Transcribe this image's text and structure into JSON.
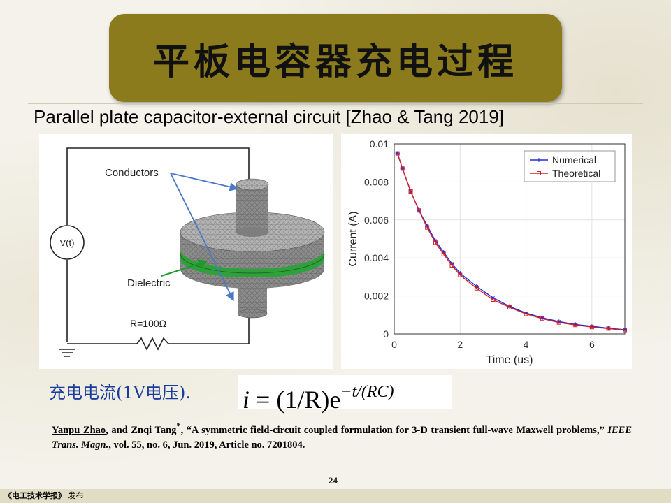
{
  "title": "平板电容器充电过程",
  "subtitle": "Parallel plate capacitor-external circuit [Zhao & Tang 2019]",
  "diagram": {
    "source_label": "V(t)",
    "conductors_label": "Conductors",
    "dielectric_label": "Dielectric",
    "resistor_label": "R=100Ω"
  },
  "chart_data": {
    "type": "line",
    "xlabel": "Time (us)",
    "ylabel": "Current (A)",
    "xlim": [
      0,
      7
    ],
    "ylim": [
      0,
      0.01
    ],
    "x_ticks": [
      "0",
      "2",
      "4",
      "6"
    ],
    "y_ticks": [
      "0",
      "0.002",
      "0.004",
      "0.006",
      "0.008",
      "0.01"
    ],
    "grid": true,
    "legend_position": "top-right",
    "series": [
      {
        "name": "Numerical",
        "color": "#1f2bd6",
        "marker": "asterisk",
        "x": [
          0.1,
          0.25,
          0.5,
          0.75,
          1.0,
          1.25,
          1.5,
          1.75,
          2.0,
          2.5,
          3.0,
          3.5,
          4.0,
          4.5,
          5.0,
          5.5,
          6.0,
          6.5,
          7.0
        ],
        "y": [
          0.0095,
          0.0087,
          0.0075,
          0.0065,
          0.0057,
          0.0049,
          0.0043,
          0.0037,
          0.0032,
          0.0025,
          0.0019,
          0.00145,
          0.0011,
          0.00085,
          0.00065,
          0.0005,
          0.0004,
          0.0003,
          0.00022
        ]
      },
      {
        "name": "Theoretical",
        "color": "#d0202a",
        "marker": "square",
        "x": [
          0.1,
          0.25,
          0.5,
          0.75,
          1.0,
          1.25,
          1.5,
          1.75,
          2.0,
          2.5,
          3.0,
          3.5,
          4.0,
          4.5,
          5.0,
          5.5,
          6.0,
          6.5,
          7.0
        ],
        "y": [
          0.0095,
          0.0087,
          0.0075,
          0.0065,
          0.0056,
          0.0048,
          0.0042,
          0.0036,
          0.0031,
          0.0024,
          0.0018,
          0.0014,
          0.00105,
          0.0008,
          0.0006,
          0.00047,
          0.00036,
          0.00028,
          0.0002
        ]
      }
    ]
  },
  "current_label": "充电电流(1V电压).",
  "formula": {
    "lhs": "i",
    "eq": "=",
    "body": "(1/R)e",
    "exponent": "−t/(RC)"
  },
  "reference": {
    "author1": "Yanpu Zhao",
    "rest1": ", and Znqi Tang",
    "star": "*",
    "title_part": ", “A symmetric field-circuit coupled formulation for 3-D transient full-wave Maxwell problems,”",
    "journal": "IEEE Trans. Magn.",
    "rest2": ", vol. 55, no. 6, Jun. 2019, Article no. 7201804."
  },
  "page_number": "24",
  "footer": {
    "journal": "《电工技术学报》",
    "action": "发布"
  }
}
